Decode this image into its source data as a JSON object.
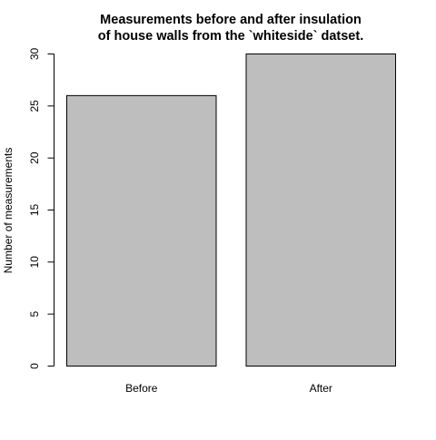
{
  "chart_data": {
    "type": "bar",
    "title_lines": [
      "Measurements before and after insulation",
      "of house walls from the `whiteside` datset."
    ],
    "xlabel": "",
    "ylabel": "Number of measurements",
    "categories": [
      "Before",
      "After"
    ],
    "values": [
      26,
      30
    ],
    "ylim": [
      0,
      30
    ],
    "yticks": [
      "0",
      "5",
      "10",
      "15",
      "20",
      "25",
      "30"
    ],
    "grid": false,
    "legend": "none",
    "bar_color": "#bebebe",
    "bar_border_color": "#000000"
  }
}
